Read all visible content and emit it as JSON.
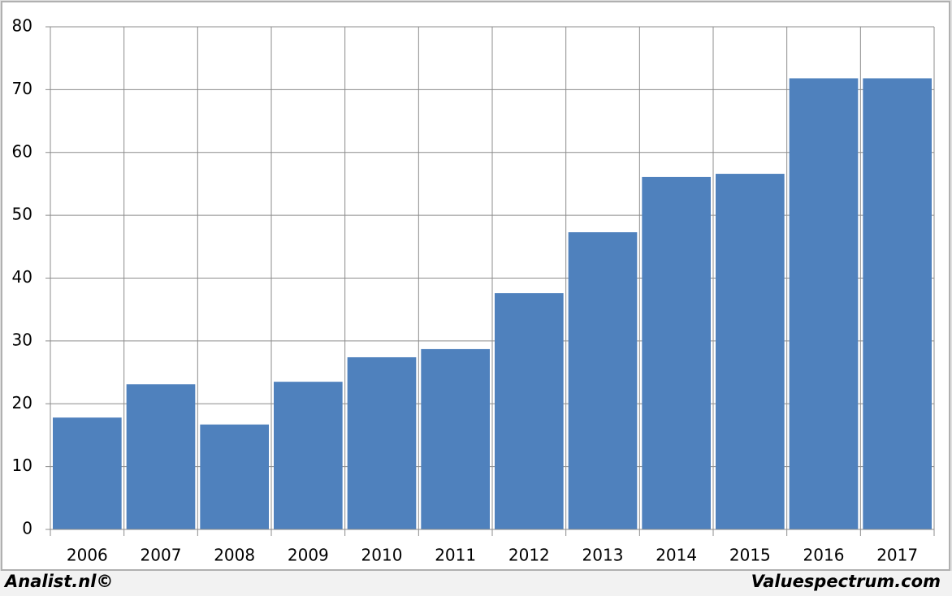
{
  "chart_data": {
    "type": "bar",
    "categories": [
      "2006",
      "2007",
      "2008",
      "2009",
      "2010",
      "2011",
      "2012",
      "2013",
      "2014",
      "2015",
      "2016",
      "2017"
    ],
    "values": [
      17.8,
      23.1,
      16.7,
      23.5,
      27.4,
      28.7,
      37.6,
      47.3,
      56.1,
      56.6,
      71.8,
      71.8
    ],
    "color": "#4f81bd",
    "ylim": [
      0,
      80
    ],
    "yticks": [
      0,
      10,
      20,
      30,
      40,
      50,
      60,
      70,
      80
    ],
    "grid": true
  },
  "footer": {
    "left": "Analist.nl©",
    "right": "Valuespectrum.com"
  }
}
